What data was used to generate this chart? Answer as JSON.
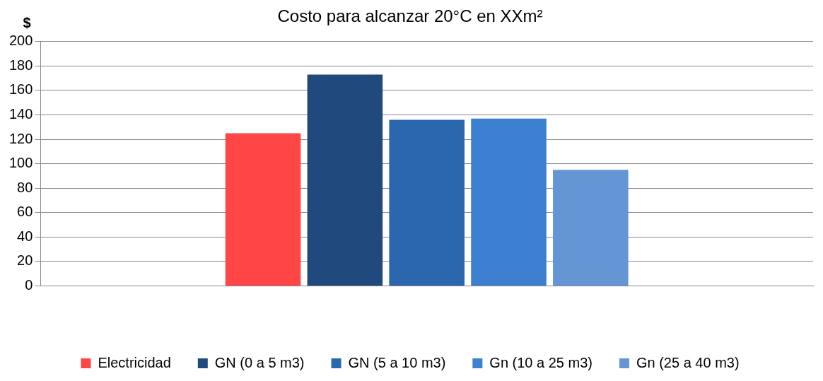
{
  "chart_data": {
    "type": "bar",
    "title": "Costo para alcanzar 20°C en XXm²",
    "ylabel": "$",
    "categories": [
      null
    ],
    "series": [
      {
        "name": "Electricidad",
        "color": "#ff4646",
        "values": [
          125
        ]
      },
      {
        "name": "GN (0 a 5 m3)",
        "color": "#204a7e",
        "values": [
          173
        ]
      },
      {
        "name": "GN (5 a 10 m3)",
        "color": "#2b67ae",
        "values": [
          136
        ]
      },
      {
        "name": "Gn (10 a 25 m3)",
        "color": "#3d7fd0",
        "values": [
          137
        ]
      },
      {
        "name": "Gn (25 a 40 m3)",
        "color": "#6496d6",
        "values": [
          95
        ]
      }
    ],
    "ylim": [
      0,
      200
    ],
    "yticks": [
      0,
      20,
      40,
      60,
      80,
      100,
      120,
      140,
      160,
      180,
      200
    ],
    "grid": "y",
    "legend": "bottom"
  }
}
